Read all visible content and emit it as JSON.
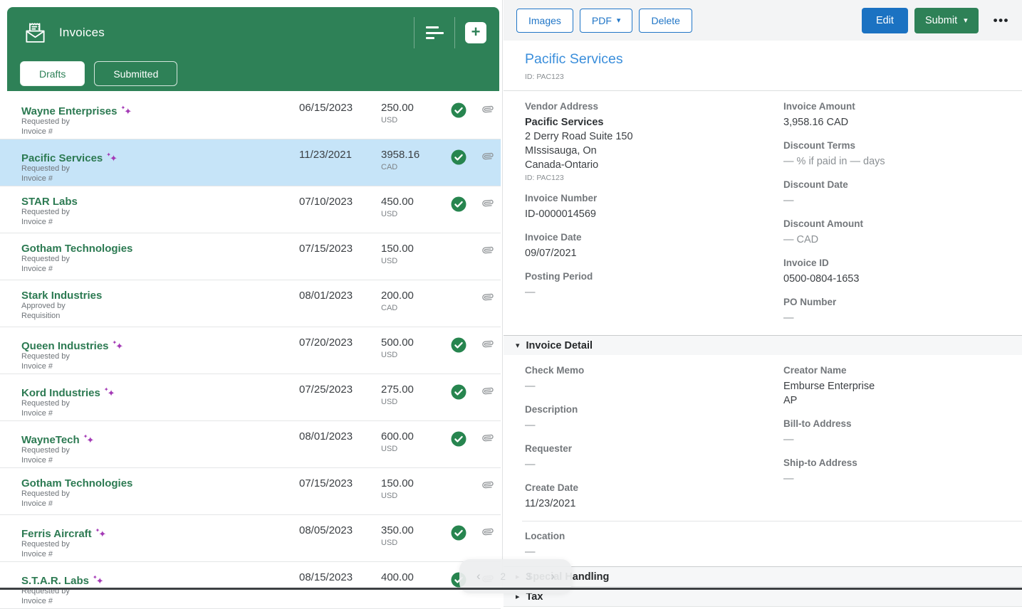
{
  "colors": {
    "header_green": "#2e8157",
    "selected_row_blue": "#c6e4f8",
    "vendor_green": "#2c7a52",
    "sparkle_purple": "#a43ab6",
    "check_green": "#27854f",
    "button_blue": "#1b72c2",
    "title_blue": "#3a8edb"
  },
  "left_panel": {
    "title": "Invoices",
    "tabs": [
      {
        "label": "Drafts",
        "active": true
      },
      {
        "label": "Submitted",
        "active": false
      }
    ],
    "rows": [
      {
        "vendor": "Wayne Enterprises",
        "sparkle": true,
        "sub1": "Requested by",
        "sub2": "Invoice #",
        "date": "06/15/2023",
        "amount": "250.00",
        "currency": "USD",
        "approved": true,
        "attachment": true,
        "selected": false
      },
      {
        "vendor": "Pacific Services",
        "sparkle": true,
        "sub1": "Requested by",
        "sub2": "Invoice #",
        "date": "11/23/2021",
        "amount": "3958.16",
        "currency": "CAD",
        "approved": true,
        "attachment": true,
        "selected": true
      },
      {
        "vendor": "STAR Labs",
        "sparkle": false,
        "sub1": "Requested by",
        "sub2": "Invoice #",
        "date": "07/10/2023",
        "amount": "450.00",
        "currency": "USD",
        "approved": true,
        "attachment": true,
        "selected": false
      },
      {
        "vendor": "Gotham Technologies",
        "sparkle": false,
        "sub1": "Requested by",
        "sub2": "Invoice #",
        "date": "07/15/2023",
        "amount": "150.00",
        "currency": "USD",
        "approved": false,
        "attachment": true,
        "selected": false
      },
      {
        "vendor": "Stark Industries",
        "sparkle": false,
        "sub1": "Approved by",
        "sub2": "Requisition",
        "date": "08/01/2023",
        "amount": "200.00",
        "currency": "CAD",
        "approved": false,
        "attachment": true,
        "selected": false
      },
      {
        "vendor": "Queen Industries",
        "sparkle": true,
        "sub1": "Requested by",
        "sub2": "Invoice #",
        "date": "07/20/2023",
        "amount": "500.00",
        "currency": "USD",
        "approved": true,
        "attachment": true,
        "selected": false
      },
      {
        "vendor": "Kord Industries",
        "sparkle": true,
        "sub1": "Requested by",
        "sub2": "Invoice #",
        "date": "07/25/2023",
        "amount": "275.00",
        "currency": "USD",
        "approved": true,
        "attachment": true,
        "selected": false
      },
      {
        "vendor": "WayneTech",
        "sparkle": true,
        "sub1": "Requested by",
        "sub2": "Invoice #",
        "date": "08/01/2023",
        "amount": "600.00",
        "currency": "USD",
        "approved": true,
        "attachment": true,
        "selected": false
      },
      {
        "vendor": "Gotham Technologies",
        "sparkle": false,
        "sub1": "Requested by",
        "sub2": "Invoice #",
        "date": "07/15/2023",
        "amount": "150.00",
        "currency": "USD",
        "approved": false,
        "attachment": true,
        "selected": false
      },
      {
        "vendor": "Ferris Aircraft",
        "sparkle": true,
        "sub1": "Requested by",
        "sub2": "Invoice #",
        "date": "08/05/2023",
        "amount": "350.00",
        "currency": "USD",
        "approved": true,
        "attachment": true,
        "selected": false
      },
      {
        "vendor": "S.T.A.R. Labs",
        "sparkle": true,
        "sub1": "Requested by",
        "sub2": "Invoice #",
        "date": "08/15/2023",
        "amount": "400.00",
        "currency": "",
        "approved": true,
        "attachment": true,
        "selected": false
      }
    ],
    "pagination": {
      "prev": "‹",
      "pages": [
        "2",
        "3"
      ],
      "next": "›"
    }
  },
  "right_panel": {
    "toolbar": {
      "images": "Images",
      "pdf": "PDF",
      "delete": "Delete",
      "edit": "Edit",
      "submit": "Submit"
    },
    "header": {
      "title": "Pacific Services",
      "vendor_id": "ID: PAC123"
    },
    "summary_left": [
      {
        "label": "Vendor Address",
        "lines": [
          "Pacific Services",
          "2 Derry Road Suite 150",
          "MIssisauga,  On",
          "Canada-Ontario"
        ],
        "sub": "ID: PAC123"
      },
      {
        "label": "Invoice Number",
        "value": "ID-0000014569"
      },
      {
        "label": "Invoice Date",
        "value": "09/07/2021"
      },
      {
        "label": "Posting Period",
        "value": "—",
        "muted": true
      }
    ],
    "summary_right": [
      {
        "label": "Invoice Amount",
        "value": "3,958.16  CAD"
      },
      {
        "label": "Discount Terms",
        "value": "—  % if paid in  —  days",
        "muted": true
      },
      {
        "label": "Discount Date",
        "value": "—",
        "muted": true
      },
      {
        "label": "Discount Amount",
        "value": "—  CAD",
        "muted": true
      },
      {
        "label": "Invoice ID",
        "value": "0500-0804-1653"
      },
      {
        "label": "PO Number",
        "value": "—",
        "muted": true
      }
    ],
    "invoice_detail": {
      "title": "Invoice Detail",
      "left": [
        {
          "label": "Check Memo",
          "value": "—",
          "muted": true
        },
        {
          "label": "Description",
          "value": "—",
          "muted": true
        },
        {
          "label": "Requester",
          "value": "—",
          "muted": true
        },
        {
          "label": "Create Date",
          "value": "11/23/2021"
        }
      ],
      "left_below_divider": [
        {
          "label": "Location",
          "value": "—",
          "muted": true
        }
      ],
      "right": [
        {
          "label": "Creator Name",
          "value": "Emburse Enterprise AP",
          "wrap": true
        },
        {
          "label": "Bill-to Address",
          "value": "—",
          "muted": true
        },
        {
          "label": "Ship-to Address",
          "value": "—",
          "muted": true
        }
      ]
    },
    "collapsed_sections": [
      "Special Handling",
      "Tax"
    ]
  }
}
